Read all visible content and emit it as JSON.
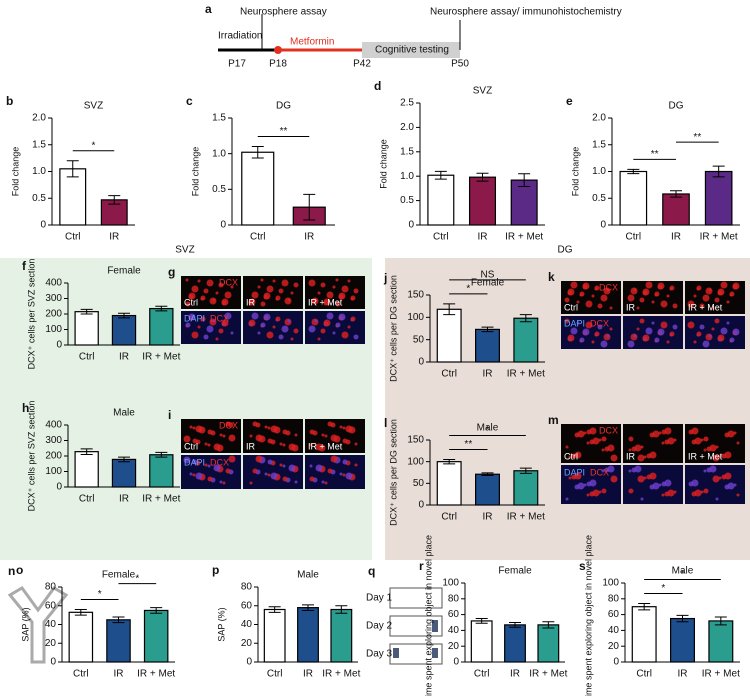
{
  "timeline": {
    "panel": "a",
    "events": [
      "Irradiation",
      "Neurosphere assay",
      "Metformin",
      "Cognitive testing",
      "Neurosphere assay/ immunohistochemistry"
    ],
    "days": [
      "P17",
      "P18",
      "P42",
      "P50"
    ]
  },
  "sections": [
    "SVZ",
    "DG"
  ],
  "images": [
    {
      "panel": "g",
      "top_label": "DCX",
      "bottom_label": [
        "DAPI",
        "DCX"
      ],
      "conditions": [
        "Ctrl",
        "IR",
        "IR + Met"
      ]
    },
    {
      "panel": "i",
      "top_label": "DCX",
      "bottom_label": [
        "DAPI",
        "DCX"
      ],
      "conditions": [
        "Ctrl",
        "IR",
        "IR + Met"
      ]
    },
    {
      "panel": "k",
      "top_label": "DCX",
      "bottom_label": [
        "DAPI",
        "DCX"
      ],
      "conditions": [
        "Ctrl",
        "IR",
        "IR + Met"
      ]
    },
    {
      "panel": "m",
      "top_label": "DCX",
      "bottom_label": [
        "DAPI",
        "DCX"
      ],
      "conditions": [
        "Ctrl",
        "IR",
        "IR + Met"
      ]
    }
  ],
  "maze": {
    "panel": "n"
  },
  "protocol": {
    "panel": "q",
    "days": [
      "Day 1",
      "Day 2",
      "Day 3"
    ]
  },
  "chart_data": [
    {
      "type": "bar",
      "panel": "b",
      "title": "SVZ",
      "ylabel": "Fold change",
      "categories": [
        "Ctrl",
        "IR"
      ],
      "values": [
        1.05,
        0.47
      ],
      "errors": [
        0.15,
        0.08
      ],
      "colors": [
        "#ffffff",
        "#8b1a4a"
      ],
      "ylim": [
        0,
        2
      ],
      "yticks": [
        0,
        0.5,
        {
          "value": 1,
          "label": "1.0"
        },
        1.5,
        {
          "value": 2,
          "label": "2.0"
        }
      ],
      "annotations": [
        {
          "text": "*",
          "from": 0,
          "to": 1
        }
      ]
    },
    {
      "type": "bar",
      "panel": "c",
      "title": "DG",
      "ylabel": "Fold change",
      "categories": [
        "Ctrl",
        "IR"
      ],
      "values": [
        1.02,
        0.25
      ],
      "errors": [
        0.08,
        0.18
      ],
      "colors": [
        "#ffffff",
        "#8b1a4a"
      ],
      "ylim": [
        0,
        1.5
      ],
      "yticks": [
        0,
        0.5,
        {
          "value": 1,
          "label": "1.0"
        },
        1.5
      ],
      "annotations": [
        {
          "text": "**",
          "from": 0,
          "to": 1
        }
      ]
    },
    {
      "type": "bar",
      "panel": "d",
      "title": "SVZ",
      "ylabel": "Fold change",
      "categories": [
        "Ctrl",
        "IR",
        "IR + Met"
      ],
      "values": [
        1.02,
        0.98,
        0.92
      ],
      "errors": [
        0.08,
        0.08,
        0.13
      ],
      "colors": [
        "#ffffff",
        "#8b1a4a",
        "#5b2a86"
      ],
      "ylim": [
        0,
        2.5
      ],
      "yticks": [
        0,
        0.5,
        {
          "value": 1,
          "label": "1.0"
        },
        1.5,
        {
          "value": 2,
          "label": "2.0"
        },
        2.5
      ],
      "annotations": []
    },
    {
      "type": "bar",
      "panel": "e",
      "title": "DG",
      "ylabel": "Fold change",
      "categories": [
        "Ctrl",
        "IR",
        "IR + Met"
      ],
      "values": [
        1.0,
        0.58,
        1.0
      ],
      "errors": [
        0.04,
        0.06,
        0.1
      ],
      "colors": [
        "#ffffff",
        "#8b1a4a",
        "#5b2a86"
      ],
      "ylim": [
        0,
        2
      ],
      "yticks": [
        0,
        0.5,
        {
          "value": 1,
          "label": "1.0"
        },
        1.5,
        {
          "value": 2,
          "label": "2.0"
        }
      ],
      "annotations": [
        {
          "text": "**",
          "from": 0,
          "to": 1
        },
        {
          "text": "**",
          "from": 1,
          "to": 2
        }
      ]
    },
    {
      "type": "bar",
      "panel": "f",
      "title": "Female",
      "ylabel": "DCX⁺ cells per SVZ section",
      "categories": [
        "Ctrl",
        "IR",
        "IR + Met"
      ],
      "values": [
        215,
        190,
        235
      ],
      "errors": [
        15,
        15,
        15
      ],
      "colors": [
        "#ffffff",
        "#1f4e8c",
        "#2a9d8f"
      ],
      "ylim": [
        0,
        400
      ],
      "yticks": [
        0,
        100,
        200,
        300,
        400
      ],
      "annotations": []
    },
    {
      "type": "bar",
      "panel": "h",
      "title": "Male",
      "ylabel": "DCX⁺ cells per SVZ section",
      "categories": [
        "Ctrl",
        "IR",
        "IR + Met"
      ],
      "values": [
        228,
        178,
        208
      ],
      "errors": [
        18,
        15,
        15
      ],
      "colors": [
        "#ffffff",
        "#1f4e8c",
        "#2a9d8f"
      ],
      "ylim": [
        0,
        400
      ],
      "yticks": [
        0,
        100,
        200,
        300,
        400
      ],
      "annotations": []
    },
    {
      "type": "bar",
      "panel": "j",
      "title": "Female",
      "ylabel": "DCX⁺ cells per DG section",
      "categories": [
        "Ctrl",
        "IR",
        "IR + Met"
      ],
      "values": [
        118,
        73,
        98
      ],
      "errors": [
        12,
        5,
        8
      ],
      "colors": [
        "#ffffff",
        "#1f4e8c",
        "#2a9d8f"
      ],
      "ylim": [
        0,
        150
      ],
      "yticks": [
        0,
        50,
        100,
        150
      ],
      "annotations": [
        {
          "text": "*",
          "from": 0,
          "to": 1
        },
        {
          "text": "NS",
          "from": 0,
          "to": 2
        }
      ]
    },
    {
      "type": "bar",
      "panel": "l",
      "title": "Male",
      "ylabel": "DCX⁺ cells per DG section",
      "categories": [
        "Ctrl",
        "IR",
        "IR + Met"
      ],
      "values": [
        100,
        71,
        79
      ],
      "errors": [
        5,
        3,
        6
      ],
      "colors": [
        "#ffffff",
        "#1f4e8c",
        "#2a9d8f"
      ],
      "ylim": [
        0,
        150
      ],
      "yticks": [
        0,
        50,
        100,
        150
      ],
      "annotations": [
        {
          "text": "**",
          "from": 0,
          "to": 1
        },
        {
          "text": "*",
          "from": 0,
          "to": 2
        }
      ]
    },
    {
      "type": "bar",
      "panel": "o",
      "title": "Female",
      "ylabel": "SAP (%)",
      "categories": [
        "Ctrl",
        "IR",
        "IR + Met"
      ],
      "values": [
        53,
        45,
        55
      ],
      "errors": [
        3,
        3,
        3
      ],
      "colors": [
        "#ffffff",
        "#1f4e8c",
        "#2a9d8f"
      ],
      "ylim": [
        0,
        80
      ],
      "yticks": [
        0,
        20,
        40,
        60,
        80
      ],
      "annotations": [
        {
          "text": "*",
          "from": 0,
          "to": 1
        },
        {
          "text": "*",
          "from": 1,
          "to": 2
        }
      ]
    },
    {
      "type": "bar",
      "panel": "p",
      "title": "Male",
      "ylabel": "SAP (%)",
      "categories": [
        "Ctrl",
        "IR",
        "IR + Met"
      ],
      "values": [
        56,
        58,
        56
      ],
      "errors": [
        3,
        3,
        4
      ],
      "colors": [
        "#ffffff",
        "#1f4e8c",
        "#2a9d8f"
      ],
      "ylim": [
        0,
        80
      ],
      "yticks": [
        0,
        20,
        40,
        60,
        80
      ],
      "annotations": []
    },
    {
      "type": "bar",
      "panel": "r",
      "title": "Female",
      "ylabel": "% time spent exploring object in novel place",
      "categories": [
        "Ctrl",
        "IR",
        "IR + Met"
      ],
      "values": [
        52,
        47,
        47
      ],
      "errors": [
        3,
        3,
        4
      ],
      "colors": [
        "#ffffff",
        "#1f4e8c",
        "#2a9d8f"
      ],
      "ylim": [
        0,
        100
      ],
      "yticks": [
        0,
        20,
        40,
        60,
        80,
        100
      ],
      "annotations": []
    },
    {
      "type": "bar",
      "panel": "s",
      "title": "Male",
      "ylabel": "% time spent exploring object in novel place",
      "categories": [
        "Ctrl",
        "IR",
        "IR + Met"
      ],
      "values": [
        70,
        55,
        52
      ],
      "errors": [
        4,
        4,
        5
      ],
      "colors": [
        "#ffffff",
        "#1f4e8c",
        "#2a9d8f"
      ],
      "ylim": [
        0,
        100
      ],
      "yticks": [
        0,
        20,
        40,
        60,
        80,
        100
      ],
      "annotations": [
        {
          "text": "*",
          "from": 0,
          "to": 1
        },
        {
          "text": "*",
          "from": 0,
          "to": 2
        }
      ]
    }
  ]
}
